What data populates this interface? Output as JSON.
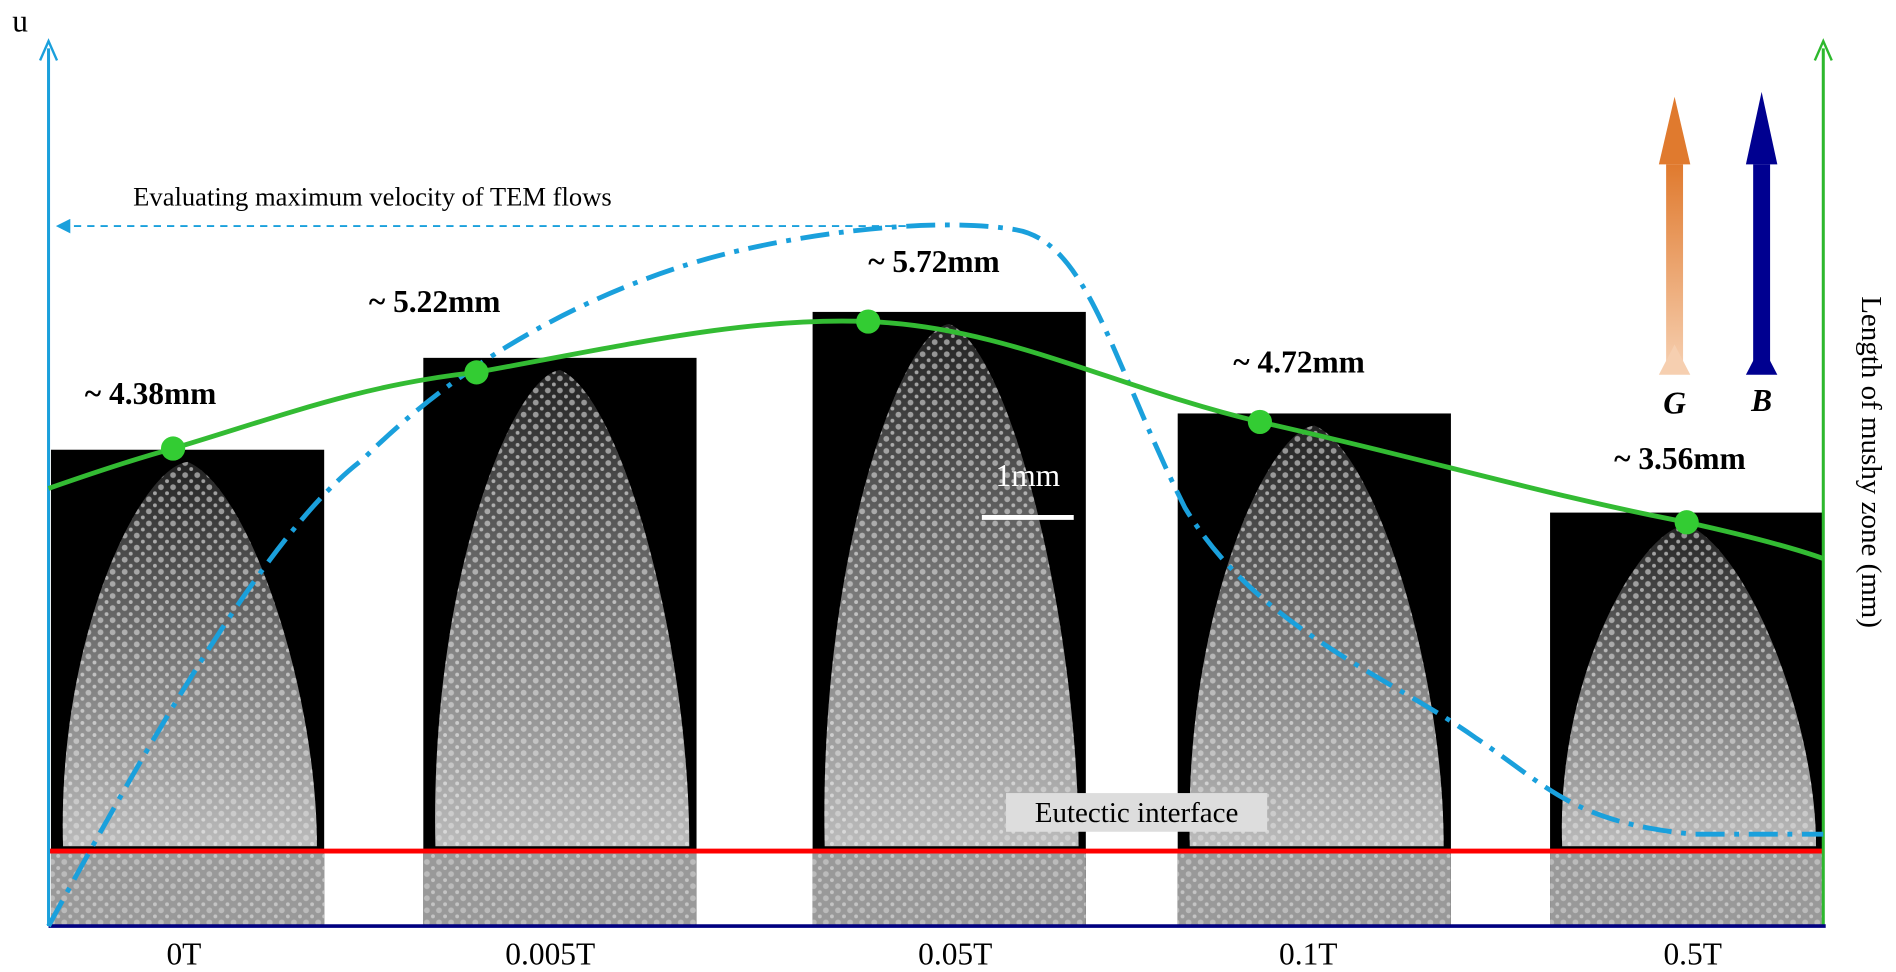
{
  "axis_labels": {
    "left": "u",
    "right": "Length of mushy zone  (mm)"
  },
  "annotation": "Evaluating maximum velocity of TEM flows",
  "samples": [
    {
      "field": "0T",
      "mushy_length": "~ 4.38mm"
    },
    {
      "field": "0.005T",
      "mushy_length": "~ 5.22mm"
    },
    {
      "field": "0.05T",
      "mushy_length": "~ 5.72mm"
    },
    {
      "field": "0.1T",
      "mushy_length": "~ 4.72mm"
    },
    {
      "field": "0.5T",
      "mushy_length": "~ 3.56mm"
    }
  ],
  "scale_bar": "1mm",
  "interface": "Eutectic interface",
  "arrows": {
    "gradient": "G",
    "field": "B"
  }
}
